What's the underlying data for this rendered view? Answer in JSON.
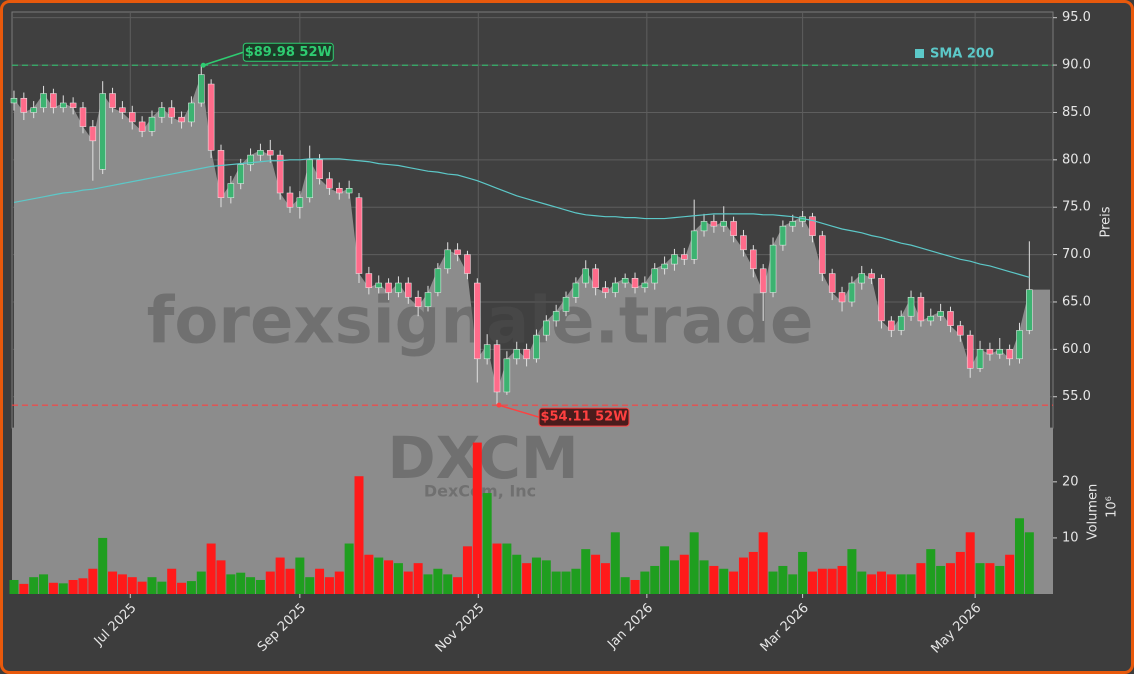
{
  "chart_data": {
    "type": "candlestick",
    "xlim": [
      -0.2,
      105.4
    ],
    "xticks": [
      {
        "value": 11.8,
        "label": "Jul 2025"
      },
      {
        "value": 29.0,
        "label": "Sep 2025"
      },
      {
        "value": 47.1,
        "label": "Nov 2025"
      },
      {
        "value": 64.2,
        "label": "Jan 2026"
      },
      {
        "value": 80.0,
        "label": "Mar 2026"
      },
      {
        "value": 97.5,
        "label": "May 2026"
      }
    ],
    "ylim": [
      51.7,
      95.6
    ],
    "yticks": [
      {
        "value": 55,
        "label": "55.0"
      },
      {
        "value": 60,
        "label": "60.0"
      },
      {
        "value": 65,
        "label": "65.0"
      },
      {
        "value": 70,
        "label": "70.0"
      },
      {
        "value": 75,
        "label": "75.0"
      },
      {
        "value": 80,
        "label": "80.0"
      },
      {
        "value": 85,
        "label": "85.0"
      },
      {
        "value": 90,
        "label": "90.0"
      },
      {
        "value": 95,
        "label": "95.0"
      }
    ],
    "ylabel": "Preis",
    "grid": true,
    "up_color": "#3cb371",
    "down_color": "#ff6b8a",
    "area_color": "#8c8c8c",
    "open": [
      86,
      86.5,
      85,
      85.5,
      87,
      85.5,
      86,
      85.5,
      83.5,
      79,
      87,
      85.5,
      85,
      84,
      83,
      84.5,
      85.5,
      84.5,
      84,
      86,
      88,
      81,
      76,
      77.5,
      79.5,
      80.5,
      81,
      80.5,
      76.5,
      75,
      76,
      80,
      78,
      77,
      76.5,
      76,
      68,
      66.5,
      67,
      66,
      67,
      65.5,
      64.5,
      66,
      68.5,
      70.5,
      70,
      67,
      59,
      60.5,
      55.5,
      59,
      60,
      59,
      61.5,
      63,
      64,
      65.5,
      67,
      68.5,
      66.5,
      66,
      67,
      67.5,
      66.5,
      67,
      68.5,
      69,
      70,
      69.5,
      72.5,
      73.5,
      73,
      73.5,
      72,
      70.5,
      68.5,
      66,
      71,
      73,
      73.5,
      74,
      72,
      68,
      66,
      65,
      67,
      68,
      67.5,
      63,
      62,
      63.5,
      65.5,
      63,
      63.5,
      64,
      62.5,
      61.5,
      58,
      60,
      59.5,
      60,
      59,
      62
    ],
    "high": [
      87.3,
      87.1,
      86.2,
      87.8,
      87.5,
      86.8,
      86.6,
      86.1,
      84.2,
      88.3,
      87.6,
      86.2,
      85.7,
      84.6,
      85.2,
      86.1,
      86.3,
      85.1,
      86.7,
      89.98,
      88.5,
      81.6,
      78.3,
      80.1,
      81.2,
      81.7,
      82.1,
      81,
      77.2,
      76.7,
      81.5,
      80.6,
      78.7,
      77.6,
      77.8,
      76.5,
      68.7,
      67.8,
      67.5,
      67.7,
      67.6,
      66.2,
      66.7,
      69.1,
      71.3,
      71.2,
      70.4,
      67.5,
      61.6,
      61,
      59.8,
      60.8,
      60.6,
      62.1,
      63.6,
      64.7,
      66.1,
      67.6,
      69.4,
      69,
      67.2,
      67.6,
      68,
      68.1,
      67.7,
      69.1,
      69.8,
      70.6,
      70.7,
      75.8,
      74.3,
      74.2,
      75.1,
      74,
      72.6,
      71,
      69,
      71.8,
      73.6,
      74.2,
      74.6,
      74.4,
      72.5,
      68.5,
      66.6,
      67.7,
      68.8,
      68.5,
      67.9,
      63.5,
      64.1,
      66.2,
      66,
      64.3,
      64.8,
      64.5,
      63,
      62,
      60.9,
      60.7,
      61.2,
      60.5,
      62.8,
      71.4
    ],
    "low": [
      85.2,
      84.2,
      84.4,
      85,
      84.9,
      85,
      84.8,
      82.8,
      77.8,
      78.5,
      85,
      84.3,
      83.2,
      82.4,
      82.5,
      83.9,
      83.8,
      83.3,
      83.5,
      85.6,
      80.2,
      75,
      75.4,
      76.9,
      78.8,
      79.9,
      79.7,
      75.8,
      74.4,
      73.8,
      75.5,
      77.4,
      76.3,
      75.8,
      75.9,
      67,
      65.8,
      65.9,
      65.2,
      65.5,
      64.8,
      63.5,
      64,
      65.6,
      68,
      69.3,
      67.4,
      56.5,
      58.4,
      54.11,
      55.2,
      58.4,
      58.2,
      58.6,
      60.9,
      62.4,
      63.5,
      64.9,
      66.5,
      65.7,
      65.4,
      65.5,
      66.5,
      65.9,
      66,
      66.3,
      67.9,
      68.3,
      68.9,
      69,
      71.9,
      72.3,
      72.4,
      71.3,
      69.8,
      67.6,
      63,
      65.5,
      70.4,
      72.4,
      72.9,
      71.3,
      67.2,
      65.2,
      64,
      64.5,
      66.3,
      66.9,
      62.2,
      61.3,
      61.5,
      63,
      62.4,
      62.5,
      63,
      61.8,
      60.8,
      57,
      57.6,
      58.8,
      59,
      58.3,
      58.5,
      61.6
    ],
    "close": [
      86.5,
      85,
      85.5,
      87,
      85.5,
      86,
      85.5,
      83.5,
      82,
      87,
      85.5,
      85,
      84,
      83,
      84.5,
      85.5,
      84.5,
      84,
      86,
      89,
      81,
      76,
      77.5,
      79.5,
      80.5,
      81,
      80.5,
      76.5,
      75,
      76,
      80,
      78,
      77,
      76.5,
      77,
      68,
      66.5,
      67,
      66,
      67,
      65.5,
      64.5,
      66,
      68.5,
      70.5,
      70,
      68,
      59,
      60.5,
      55.5,
      59,
      60,
      59,
      61.5,
      63,
      64,
      65.5,
      67,
      68.5,
      66.5,
      66,
      67,
      67.5,
      66.5,
      67,
      68.5,
      69,
      70,
      69.5,
      72.5,
      73.5,
      73,
      73.5,
      72,
      70.5,
      68.5,
      66,
      71,
      73,
      73.5,
      74,
      72,
      68,
      66,
      65,
      67,
      68,
      67.5,
      63,
      62,
      63.5,
      65.5,
      63,
      63.5,
      64,
      62.5,
      61.5,
      58,
      60,
      59.5,
      60,
      59,
      62,
      66.3
    ],
    "sma": {
      "name": "SMA 200",
      "color": "#5cc8c8",
      "values": [
        75.5,
        75.7,
        75.9,
        76.1,
        76.3,
        76.5,
        76.6,
        76.8,
        76.9,
        77.1,
        77.3,
        77.5,
        77.7,
        77.9,
        78.1,
        78.3,
        78.5,
        78.7,
        78.9,
        79.1,
        79.3,
        79.4,
        79.5,
        79.6,
        79.7,
        79.8,
        79.9,
        79.9,
        80,
        80,
        80.1,
        80.1,
        80.1,
        80.1,
        80,
        79.9,
        79.8,
        79.6,
        79.5,
        79.4,
        79.2,
        79,
        78.8,
        78.7,
        78.5,
        78.4,
        78.1,
        77.8,
        77.4,
        77,
        76.6,
        76.2,
        75.9,
        75.6,
        75.3,
        75,
        74.7,
        74.4,
        74.2,
        74.1,
        74,
        74,
        73.9,
        73.9,
        73.8,
        73.8,
        73.8,
        73.9,
        74,
        74.1,
        74.2,
        74.3,
        74.3,
        74.3,
        74.3,
        74.3,
        74.2,
        74.2,
        74.1,
        74,
        73.8,
        73.6,
        73.3,
        73,
        72.7,
        72.5,
        72.3,
        72,
        71.8,
        71.5,
        71.2,
        71,
        70.7,
        70.4,
        70.1,
        69.8,
        69.5,
        69.3,
        69,
        68.8,
        68.5,
        68.2,
        67.9,
        67.6
      ]
    },
    "annotations": [
      {
        "value": 89.98,
        "label": "$89.98 52W",
        "color": "#2ecc71",
        "fill": "#1e3a28"
      },
      {
        "value": 54.11,
        "label": "$54.11 52W",
        "color": "#ff4040",
        "fill": "#4a1c1c"
      }
    ],
    "volume": {
      "type": "bar",
      "ylabel": "Volumen",
      "scale_label": "10⁶",
      "ylim": [
        0,
        29.6
      ],
      "yticks": [
        10,
        20
      ],
      "up_color": "#1f9e1f",
      "down_color": "#ff1a1a",
      "background": "#8c8c8c",
      "values": [
        2.5,
        1.8,
        3,
        3.5,
        2,
        1.9,
        2.5,
        2.8,
        4.5,
        10,
        4,
        3.5,
        3,
        2.2,
        3,
        2.2,
        4.5,
        2,
        2.3,
        4,
        9,
        6,
        3.5,
        3.8,
        3,
        2.5,
        4,
        6.5,
        4.5,
        6.5,
        3,
        4.5,
        3,
        4,
        9,
        21,
        7,
        6.5,
        6,
        5.5,
        4,
        5.5,
        3.5,
        4.5,
        3.5,
        3,
        8.5,
        27,
        18,
        9,
        9,
        7,
        5.5,
        6.5,
        6,
        4,
        4,
        4.5,
        8,
        7,
        5.5,
        11,
        3,
        2.5,
        4,
        5,
        8.5,
        6,
        7,
        11,
        6,
        5,
        4.5,
        4,
        6.5,
        7.5,
        11,
        4,
        5,
        3.5,
        7.5,
        4,
        4.5,
        4.5,
        5,
        8,
        4,
        3.5,
        4,
        3.5,
        3.5,
        3.5,
        5.5,
        8,
        5,
        5.5,
        7.5,
        11,
        5.5,
        5.5,
        5,
        7,
        13.5,
        11
      ]
    },
    "watermarks": [
      "forexsignale.trade",
      "DXCM",
      "DexCom, Inc"
    ]
  }
}
